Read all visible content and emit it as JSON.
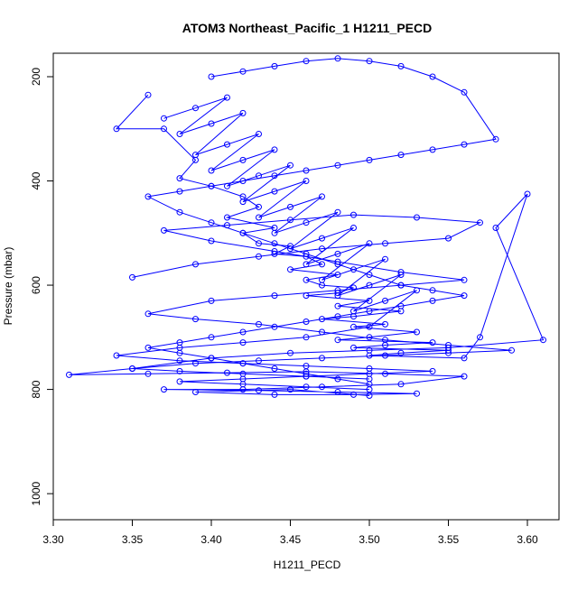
{
  "chart_data": {
    "type": "line",
    "title": "ATOM3 Northeast_Pacific_1 H1211_PECD",
    "xlabel": "H1211_PECD",
    "ylabel": "Pressure (mbar)",
    "xlim": [
      3.3,
      3.62
    ],
    "ylim": [
      1050,
      155
    ],
    "y_reversed": true,
    "x_ticks": [
      {
        "value": 3.3,
        "label": "3.30"
      },
      {
        "value": 3.35,
        "label": "3.35"
      },
      {
        "value": 3.4,
        "label": "3.40"
      },
      {
        "value": 3.45,
        "label": "3.45"
      },
      {
        "value": 3.5,
        "label": "3.50"
      },
      {
        "value": 3.55,
        "label": "3.55"
      },
      {
        "value": 3.6,
        "label": "3.60"
      }
    ],
    "y_ticks": [
      {
        "value": 200,
        "label": "200"
      },
      {
        "value": 400,
        "label": "400"
      },
      {
        "value": 600,
        "label": "600"
      },
      {
        "value": 800,
        "label": "800"
      },
      {
        "value": 1000,
        "label": "1000"
      }
    ],
    "grid": false,
    "series_color": "#0000ff",
    "series": [
      {
        "x": [
          3.36,
          3.34,
          3.37,
          3.39,
          3.38,
          3.4,
          3.42,
          3.43,
          3.41,
          3.44,
          3.42,
          3.43,
          3.45,
          3.44,
          3.46,
          3.47,
          3.45,
          3.48,
          3.46,
          3.47,
          3.49,
          3.48,
          3.46,
          3.5,
          3.48,
          3.52,
          3.49,
          3.47,
          3.51,
          3.49,
          3.53,
          3.5,
          3.48,
          3.54,
          3.51,
          3.49,
          3.55,
          3.52,
          3.5,
          3.56,
          3.57,
          3.6,
          3.58,
          3.61,
          3.55,
          3.5,
          3.45,
          3.4,
          3.35,
          3.31,
          3.36,
          3.41,
          3.46,
          3.51,
          3.56,
          3.52,
          3.47,
          3.42,
          3.37,
          3.43,
          3.48,
          3.53,
          3.49,
          3.44,
          3.39,
          3.45,
          3.5
        ],
        "y": [
          235,
          300,
          300,
          360,
          395,
          410,
          430,
          450,
          470,
          490,
          500,
          520,
          525,
          540,
          545,
          560,
          570,
          580,
          590,
          600,
          605,
          615,
          620,
          630,
          640,
          650,
          660,
          665,
          675,
          680,
          690,
          700,
          705,
          710,
          715,
          720,
          725,
          730,
          735,
          740,
          700,
          425,
          490,
          705,
          720,
          725,
          730,
          740,
          760,
          772,
          770,
          768,
          766,
          770,
          775,
          790,
          795,
          800,
          800,
          802,
          805,
          808,
          810,
          810,
          805,
          800,
          812
        ]
      },
      {
        "x": [
          3.37,
          3.39,
          3.41,
          3.38,
          3.4,
          3.42,
          3.39,
          3.41,
          3.43,
          3.4,
          3.42,
          3.44,
          3.41,
          3.43,
          3.45,
          3.42,
          3.44,
          3.46,
          3.43,
          3.45,
          3.47,
          3.44,
          3.46,
          3.48,
          3.45,
          3.47,
          3.49,
          3.46,
          3.48,
          3.5,
          3.47,
          3.49,
          3.51,
          3.48,
          3.5,
          3.52,
          3.49,
          3.51,
          3.53,
          3.5,
          3.46,
          3.42,
          3.38,
          3.34,
          3.38,
          3.42,
          3.46,
          3.5,
          3.54,
          3.5,
          3.46,
          3.42,
          3.38,
          3.42,
          3.46,
          3.5
        ],
        "y": [
          280,
          260,
          240,
          310,
          290,
          270,
          350,
          330,
          310,
          380,
          360,
          340,
          410,
          390,
          370,
          440,
          420,
          400,
          470,
          450,
          430,
          500,
          480,
          460,
          530,
          510,
          490,
          560,
          540,
          520,
          590,
          570,
          550,
          620,
          600,
          580,
          650,
          630,
          610,
          680,
          700,
          710,
          720,
          735,
          745,
          750,
          755,
          760,
          765,
          770,
          775,
          780,
          785,
          790,
          795,
          800
        ]
      },
      {
        "x": [
          3.4,
          3.42,
          3.44,
          3.46,
          3.48,
          3.5,
          3.52,
          3.54,
          3.56,
          3.58,
          3.56,
          3.54,
          3.52,
          3.5,
          3.48,
          3.46,
          3.44,
          3.42,
          3.4,
          3.38,
          3.36,
          3.38,
          3.4,
          3.42,
          3.44,
          3.46,
          3.48,
          3.5,
          3.52,
          3.54,
          3.56,
          3.54,
          3.52,
          3.5,
          3.48,
          3.46,
          3.44,
          3.42,
          3.4,
          3.38,
          3.36,
          3.38,
          3.4,
          3.42,
          3.44,
          3.46,
          3.48,
          3.5
        ],
        "y": [
          200,
          190,
          180,
          170,
          165,
          170,
          180,
          200,
          230,
          320,
          330,
          340,
          350,
          360,
          370,
          380,
          390,
          400,
          410,
          420,
          430,
          460,
          480,
          500,
          520,
          540,
          560,
          580,
          600,
          610,
          620,
          630,
          640,
          650,
          660,
          670,
          680,
          690,
          700,
          710,
          720,
          730,
          740,
          750,
          760,
          770,
          780,
          790
        ]
      },
      {
        "x": [
          3.35,
          3.39,
          3.43,
          3.47,
          3.51,
          3.55,
          3.57,
          3.53,
          3.49,
          3.45,
          3.41,
          3.37,
          3.4,
          3.44,
          3.48,
          3.52,
          3.56,
          3.52,
          3.48,
          3.44,
          3.4,
          3.36,
          3.39,
          3.43,
          3.47,
          3.51,
          3.55,
          3.59,
          3.55,
          3.51,
          3.47,
          3.43,
          3.39,
          3.35,
          3.38,
          3.42,
          3.46,
          3.5
        ],
        "y": [
          585,
          560,
          545,
          530,
          520,
          510,
          480,
          470,
          465,
          475,
          485,
          495,
          515,
          535,
          555,
          575,
          590,
          600,
          610,
          620,
          630,
          655,
          665,
          675,
          690,
          705,
          715,
          725,
          730,
          735,
          740,
          745,
          750,
          760,
          765,
          770,
          775,
          780
        ]
      }
    ]
  }
}
